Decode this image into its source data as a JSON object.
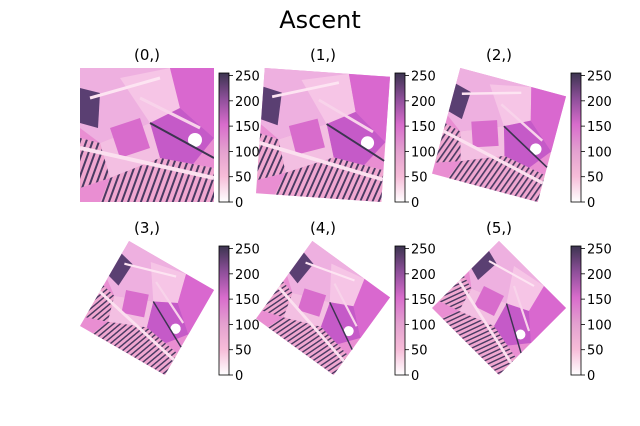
{
  "title": "Ascent",
  "chart_data": {
    "type": "heatmap",
    "title": "Ascent",
    "colorbar": {
      "ticks": [
        0,
        50,
        100,
        150,
        200,
        250
      ],
      "vmin": 0,
      "vmax": 255,
      "colors": [
        "#ffffff",
        "#f6bcd8",
        "#e3a0cf",
        "#d86ccc",
        "#8e4f9a",
        "#3c3450"
      ]
    },
    "panels": [
      {
        "title": "(0,)",
        "rotation_deg": 0
      },
      {
        "title": "(1,)",
        "rotation_deg": 4
      },
      {
        "title": "(2,)",
        "rotation_deg": 15
      },
      {
        "title": "(3,)",
        "rotation_deg": 30
      },
      {
        "title": "(4,)",
        "rotation_deg": 36
      },
      {
        "title": "(5,)",
        "rotation_deg": 45
      }
    ]
  }
}
